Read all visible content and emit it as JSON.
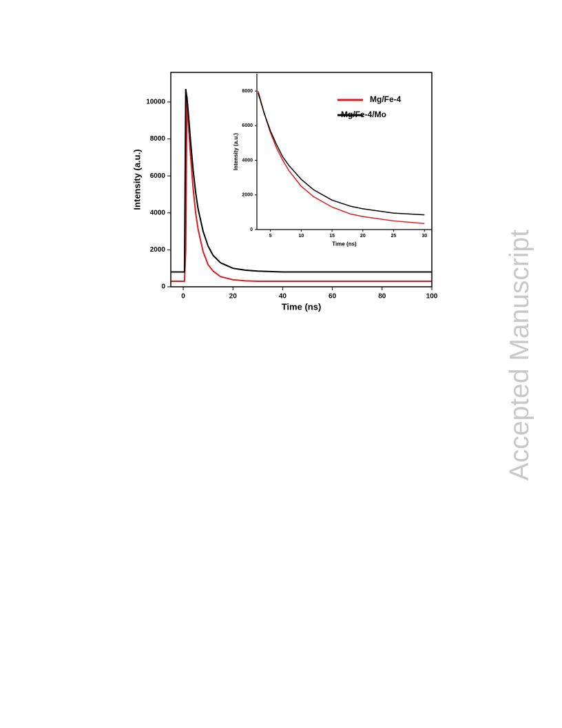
{
  "chart_data": [
    {
      "type": "line",
      "xlabel": "Time (ns)",
      "ylabel": "Intensity (a.u.)",
      "xlim": [
        -5,
        100
      ],
      "ylim": [
        0,
        11600
      ],
      "xticks": [
        0,
        20,
        40,
        60,
        80,
        100
      ],
      "yticks": [
        0,
        2000,
        4000,
        6000,
        8000,
        10000
      ],
      "legend": "upper right",
      "x": [
        -5,
        -1,
        0,
        0.5,
        1,
        1.5,
        2,
        3,
        4,
        5,
        6,
        8,
        10,
        12,
        15,
        20,
        25,
        30,
        40,
        50,
        60,
        70,
        80,
        90,
        100
      ],
      "series": [
        {
          "name": "Mg/Fe-4",
          "color": "#e0181b",
          "values": [
            300,
            300,
            300,
            300,
            2000,
            10300,
            9000,
            7000,
            5300,
            4000,
            3100,
            1900,
            1200,
            850,
            550,
            380,
            320,
            300,
            300,
            300,
            300,
            300,
            300,
            300,
            300
          ]
        },
        {
          "name": "Mg/Fe-4/Mo",
          "color": "#000000",
          "values": [
            800,
            800,
            800,
            800,
            10700,
            10200,
            9500,
            7800,
            6300,
            5100,
            4200,
            3000,
            2200,
            1700,
            1300,
            1000,
            900,
            850,
            800,
            800,
            800,
            800,
            800,
            800,
            800
          ]
        }
      ]
    },
    {
      "type": "line",
      "xlabel": "Time (ns)",
      "ylabel": "Intensity (a.u.)",
      "xlim": [
        2.8,
        31.2
      ],
      "ylim": [
        0,
        9000
      ],
      "xticks": [
        5,
        10,
        15,
        20,
        25,
        30
      ],
      "yticks": [
        0,
        2000,
        4000,
        6000,
        8000
      ],
      "x": [
        3,
        4,
        5,
        6,
        7,
        8,
        10,
        12,
        15,
        18,
        20,
        25,
        30
      ],
      "series": [
        {
          "color": "#e0181b",
          "values": [
            8000,
            6700,
            5600,
            4700,
            4000,
            3400,
            2500,
            1900,
            1300,
            900,
            750,
            500,
            350
          ]
        },
        {
          "color": "#000000",
          "values": [
            7900,
            6700,
            5700,
            4900,
            4200,
            3700,
            2900,
            2300,
            1700,
            1350,
            1200,
            950,
            850
          ]
        }
      ]
    }
  ],
  "watermark": "Accepted Manuscript"
}
